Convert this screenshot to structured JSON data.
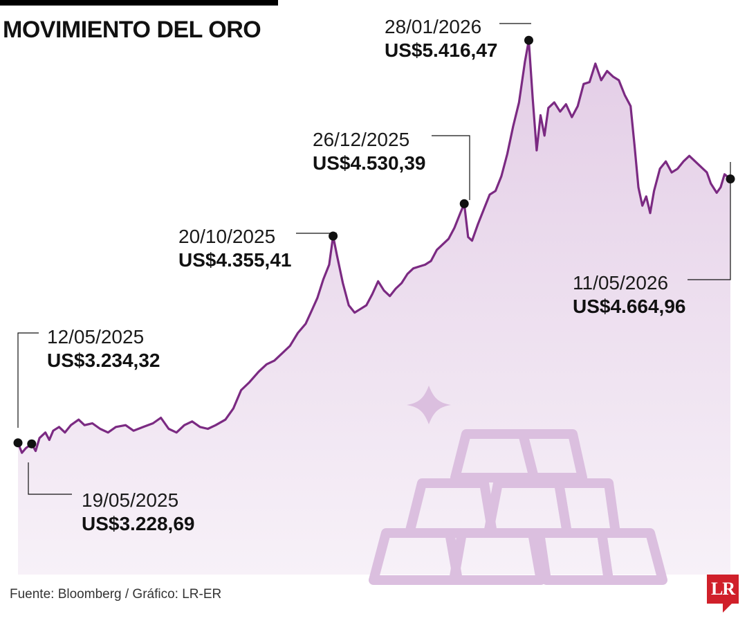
{
  "header": {
    "title": "MOVIMIENTO DEL ORO"
  },
  "footer": {
    "source": "Fuente: Bloomberg / Gráfico: LR-ER",
    "logo_text": "LR"
  },
  "chart_data": {
    "type": "area",
    "title": "MOVIMIENTO DEL ORO",
    "xlabel": "",
    "ylabel": "",
    "grid": false,
    "legend": "none",
    "colors": {
      "line": "#7b2a82",
      "fill_top": "#e3cde6",
      "fill_bottom": "#f7f1f8",
      "icon": "#dbbfdf"
    },
    "ylim": [
      2520,
      5560
    ],
    "xlim": [
      "2025-05-12",
      "2026-05-11"
    ],
    "series": [
      {
        "values": [
          [
            "2025-05-12",
            3234
          ],
          [
            "2025-05-14",
            3180
          ],
          [
            "2025-05-16",
            3205
          ],
          [
            "2025-05-19",
            3229
          ],
          [
            "2025-05-21",
            3190
          ],
          [
            "2025-05-23",
            3260
          ],
          [
            "2025-05-26",
            3290
          ],
          [
            "2025-05-28",
            3250
          ],
          [
            "2025-05-30",
            3300
          ],
          [
            "2025-06-02",
            3320
          ],
          [
            "2025-06-05",
            3290
          ],
          [
            "2025-06-08",
            3330
          ],
          [
            "2025-06-12",
            3360
          ],
          [
            "2025-06-15",
            3330
          ],
          [
            "2025-06-19",
            3340
          ],
          [
            "2025-06-23",
            3310
          ],
          [
            "2025-06-27",
            3290
          ],
          [
            "2025-07-01",
            3320
          ],
          [
            "2025-07-06",
            3330
          ],
          [
            "2025-07-10",
            3300
          ],
          [
            "2025-07-15",
            3320
          ],
          [
            "2025-07-20",
            3340
          ],
          [
            "2025-07-24",
            3370
          ],
          [
            "2025-07-28",
            3310
          ],
          [
            "2025-08-01",
            3290
          ],
          [
            "2025-08-05",
            3330
          ],
          [
            "2025-08-09",
            3350
          ],
          [
            "2025-08-13",
            3320
          ],
          [
            "2025-08-17",
            3310
          ],
          [
            "2025-08-21",
            3330
          ],
          [
            "2025-08-26",
            3360
          ],
          [
            "2025-08-30",
            3420
          ],
          [
            "2025-09-03",
            3520
          ],
          [
            "2025-09-07",
            3560
          ],
          [
            "2025-09-12",
            3620
          ],
          [
            "2025-09-16",
            3660
          ],
          [
            "2025-09-20",
            3680
          ],
          [
            "2025-09-24",
            3720
          ],
          [
            "2025-09-28",
            3760
          ],
          [
            "2025-10-02",
            3830
          ],
          [
            "2025-10-06",
            3880
          ],
          [
            "2025-10-09",
            3950
          ],
          [
            "2025-10-12",
            4020
          ],
          [
            "2025-10-15",
            4120
          ],
          [
            "2025-10-18",
            4200
          ],
          [
            "2025-10-20",
            4355
          ],
          [
            "2025-10-22",
            4250
          ],
          [
            "2025-10-25",
            4100
          ],
          [
            "2025-10-28",
            3980
          ],
          [
            "2025-10-31",
            3940
          ],
          [
            "2025-11-03",
            3960
          ],
          [
            "2025-11-06",
            3980
          ],
          [
            "2025-11-09",
            4040
          ],
          [
            "2025-11-12",
            4110
          ],
          [
            "2025-11-15",
            4060
          ],
          [
            "2025-11-18",
            4030
          ],
          [
            "2025-11-21",
            4070
          ],
          [
            "2025-11-24",
            4100
          ],
          [
            "2025-11-27",
            4150
          ],
          [
            "2025-11-30",
            4180
          ],
          [
            "2025-12-03",
            4190
          ],
          [
            "2025-12-06",
            4200
          ],
          [
            "2025-12-09",
            4220
          ],
          [
            "2025-12-12",
            4280
          ],
          [
            "2025-12-15",
            4310
          ],
          [
            "2025-12-18",
            4340
          ],
          [
            "2025-12-21",
            4400
          ],
          [
            "2025-12-24",
            4480
          ],
          [
            "2025-12-26",
            4530
          ],
          [
            "2025-12-28",
            4350
          ],
          [
            "2025-12-30",
            4330
          ],
          [
            "2026-01-02",
            4420
          ],
          [
            "2026-01-05",
            4500
          ],
          [
            "2026-01-08",
            4580
          ],
          [
            "2026-01-11",
            4600
          ],
          [
            "2026-01-14",
            4680
          ],
          [
            "2026-01-17",
            4800
          ],
          [
            "2026-01-20",
            4950
          ],
          [
            "2026-01-23",
            5080
          ],
          [
            "2026-01-26",
            5300
          ],
          [
            "2026-01-28",
            5416
          ],
          [
            "2026-01-30",
            5100
          ],
          [
            "2026-02-01",
            4820
          ],
          [
            "2026-02-03",
            5010
          ],
          [
            "2026-02-05",
            4900
          ],
          [
            "2026-02-07",
            5050
          ],
          [
            "2026-02-10",
            5080
          ],
          [
            "2026-02-13",
            5030
          ],
          [
            "2026-02-16",
            5070
          ],
          [
            "2026-02-19",
            5000
          ],
          [
            "2026-02-22",
            5060
          ],
          [
            "2026-02-25",
            5180
          ],
          [
            "2026-02-28",
            5190
          ],
          [
            "2026-03-03",
            5290
          ],
          [
            "2026-03-06",
            5200
          ],
          [
            "2026-03-09",
            5250
          ],
          [
            "2026-03-12",
            5220
          ],
          [
            "2026-03-15",
            5200
          ],
          [
            "2026-03-18",
            5120
          ],
          [
            "2026-03-21",
            5060
          ],
          [
            "2026-03-23",
            4850
          ],
          [
            "2026-03-25",
            4620
          ],
          [
            "2026-03-27",
            4520
          ],
          [
            "2026-03-29",
            4570
          ],
          [
            "2026-03-31",
            4480
          ],
          [
            "2026-04-02",
            4600
          ],
          [
            "2026-04-05",
            4720
          ],
          [
            "2026-04-08",
            4760
          ],
          [
            "2026-04-11",
            4700
          ],
          [
            "2026-04-14",
            4720
          ],
          [
            "2026-04-17",
            4760
          ],
          [
            "2026-04-20",
            4790
          ],
          [
            "2026-04-23",
            4760
          ],
          [
            "2026-04-26",
            4730
          ],
          [
            "2026-04-29",
            4700
          ],
          [
            "2026-05-01",
            4640
          ],
          [
            "2026-05-04",
            4590
          ],
          [
            "2026-05-06",
            4620
          ],
          [
            "2026-05-08",
            4690
          ],
          [
            "2026-05-11",
            4665
          ]
        ]
      }
    ],
    "annotations": [
      {
        "date": "2025-05-12",
        "value": 3234.32,
        "date_label": "12/05/2025",
        "value_label": "US$3.234,32"
      },
      {
        "date": "2025-05-19",
        "value": 3228.69,
        "date_label": "19/05/2025",
        "value_label": "US$3.228,69"
      },
      {
        "date": "2025-10-20",
        "value": 4355.41,
        "date_label": "20/10/2025",
        "value_label": "US$4.355,41"
      },
      {
        "date": "2025-12-26",
        "value": 4530.39,
        "date_label": "26/12/2025",
        "value_label": "US$4.530,39"
      },
      {
        "date": "2026-01-28",
        "value": 5416.47,
        "date_label": "28/01/2026",
        "value_label": "US$5.416,47"
      },
      {
        "date": "2026-05-11",
        "value": 4664.96,
        "date_label": "11/05/2026",
        "value_label": "US$4.664,96"
      }
    ]
  }
}
